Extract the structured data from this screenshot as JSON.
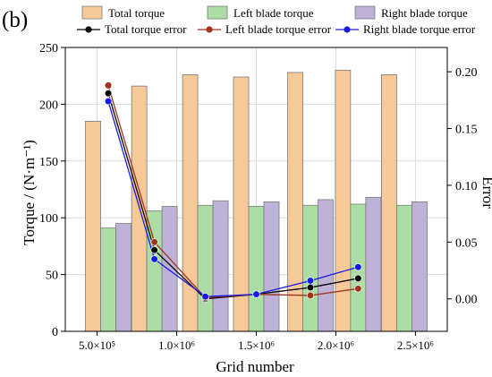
{
  "panel_label": "(b)",
  "colors": {
    "total_bar": "#F7C999",
    "left_bar": "#ABDDA4",
    "right_bar": "#BEB2D8",
    "bar_stroke": "#7a7a7a",
    "total_err": "#000000",
    "left_err": "#A0321E",
    "right_err": "#1A1AE6"
  },
  "chart_data": {
    "type": "bar",
    "xlabel": "Grid number",
    "ylabel_left": "Torque / (N·m⁻¹)",
    "ylabel_right": "Error",
    "y_left_lim": [
      0,
      250
    ],
    "y_right_lim": [
      -0.0286,
      0.2214
    ],
    "xlim": [
      300000,
      2700000
    ],
    "x_ticks": [
      {
        "value": 500000,
        "label": "5.0×10⁵"
      },
      {
        "value": 1000000,
        "label": "1.0×10⁶"
      },
      {
        "value": 1500000,
        "label": "1.5×10⁶"
      },
      {
        "value": 2000000,
        "label": "2.0×10⁶"
      },
      {
        "value": 2500000,
        "label": "2.5×10⁶"
      }
    ],
    "y_left_ticks": [
      0,
      50,
      100,
      150,
      200,
      250
    ],
    "y_right_ticks": [
      {
        "value": 0.0,
        "label": "0.00"
      },
      {
        "value": 0.05,
        "label": "0.05"
      },
      {
        "value": 0.1,
        "label": "0.10"
      },
      {
        "value": 0.15,
        "label": "0.15"
      },
      {
        "value": 0.2,
        "label": "0.20"
      }
    ],
    "grid": true,
    "grid_lines_x": [
      500000,
      1000000,
      1500000,
      2000000,
      2500000
    ],
    "grid_number": [
      570000,
      860000,
      1180000,
      1500000,
      1840000,
      2140000,
      2430000
    ],
    "bar_series": [
      {
        "name": "Total torque",
        "values": [
          185,
          216,
          226,
          224,
          228,
          230,
          226
        ]
      },
      {
        "name": "Left blade torque",
        "values": [
          91,
          106,
          111,
          110,
          111,
          112,
          111
        ]
      },
      {
        "name": "Right blade torque",
        "values": [
          95,
          110,
          115,
          114,
          116,
          118,
          114
        ]
      }
    ],
    "error_x": [
      570000,
      860000,
      1180000,
      1500000,
      1840000,
      2140000
    ],
    "error_series": [
      {
        "name": "Total torque error",
        "values": [
          0.181,
          0.043,
          0.0,
          0.004,
          0.01,
          0.018
        ]
      },
      {
        "name": "Left blade torque error",
        "values": [
          0.188,
          0.05,
          0.001,
          0.004,
          0.003,
          0.009
        ]
      },
      {
        "name": "Right blade torque error",
        "values": [
          0.174,
          0.035,
          0.002,
          0.004,
          0.016,
          0.028
        ]
      }
    ],
    "legend_position": "top"
  }
}
